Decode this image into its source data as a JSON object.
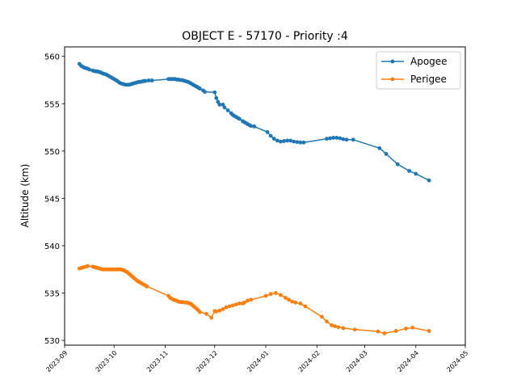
{
  "chart_data": {
    "type": "line",
    "title": "OBJECT E - 57170 - Priority :4",
    "xlabel": "",
    "ylabel": "Altitude (km)",
    "xlim": [
      "2023-09-01",
      "2024-05-01"
    ],
    "ylim": [
      529.5,
      561
    ],
    "x_ticks": [
      "2023-09",
      "2023-10",
      "2023-11",
      "2023-12",
      "2024-01",
      "2024-02",
      "2024-03",
      "2024-04",
      "2024-05"
    ],
    "y_ticks": [
      530,
      535,
      540,
      545,
      550,
      555,
      560
    ],
    "grid": false,
    "legend": "top-right",
    "series": [
      {
        "name": "Apogee",
        "color": "#1f77b4",
        "marker": "circle",
        "points": [
          [
            "2023-09-10",
            559.2
          ],
          [
            "2023-09-11",
            559.0
          ],
          [
            "2023-09-12",
            558.9
          ],
          [
            "2023-09-13",
            558.8
          ],
          [
            "2023-09-14",
            558.75
          ],
          [
            "2023-09-15",
            558.7
          ],
          [
            "2023-09-16",
            558.6
          ],
          [
            "2023-09-18",
            558.5
          ],
          [
            "2023-09-19",
            558.45
          ],
          [
            "2023-09-20",
            558.4
          ],
          [
            "2023-09-21",
            558.4
          ],
          [
            "2023-09-22",
            558.35
          ],
          [
            "2023-09-23",
            558.3
          ],
          [
            "2023-09-24",
            558.2
          ],
          [
            "2023-09-25",
            558.15
          ],
          [
            "2023-09-26",
            558.1
          ],
          [
            "2023-09-27",
            558.0
          ],
          [
            "2023-09-28",
            557.9
          ],
          [
            "2023-09-29",
            557.8
          ],
          [
            "2023-09-30",
            557.7
          ],
          [
            "2023-10-01",
            557.6
          ],
          [
            "2023-10-02",
            557.5
          ],
          [
            "2023-10-03",
            557.4
          ],
          [
            "2023-10-04",
            557.25
          ],
          [
            "2023-10-05",
            557.15
          ],
          [
            "2023-10-06",
            557.1
          ],
          [
            "2023-10-07",
            557.05
          ],
          [
            "2023-10-08",
            557.0
          ],
          [
            "2023-10-09",
            557.0
          ],
          [
            "2023-10-10",
            557.0
          ],
          [
            "2023-10-11",
            557.05
          ],
          [
            "2023-10-12",
            557.1
          ],
          [
            "2023-10-13",
            557.15
          ],
          [
            "2023-10-14",
            557.2
          ],
          [
            "2023-10-15",
            557.25
          ],
          [
            "2023-10-16",
            557.3
          ],
          [
            "2023-10-17",
            557.3
          ],
          [
            "2023-10-18",
            557.35
          ],
          [
            "2023-10-19",
            557.4
          ],
          [
            "2023-10-20",
            557.4
          ],
          [
            "2023-10-22",
            557.45
          ],
          [
            "2023-10-24",
            557.45
          ],
          [
            "2023-11-03",
            557.6
          ],
          [
            "2023-11-04",
            557.6
          ],
          [
            "2023-11-05",
            557.6
          ],
          [
            "2023-11-06",
            557.6
          ],
          [
            "2023-11-07",
            557.6
          ],
          [
            "2023-11-08",
            557.55
          ],
          [
            "2023-11-09",
            557.55
          ],
          [
            "2023-11-10",
            557.5
          ],
          [
            "2023-11-11",
            557.5
          ],
          [
            "2023-11-12",
            557.45
          ],
          [
            "2023-11-13",
            557.4
          ],
          [
            "2023-11-14",
            557.35
          ],
          [
            "2023-11-15",
            557.3
          ],
          [
            "2023-11-16",
            557.2
          ],
          [
            "2023-11-17",
            557.1
          ],
          [
            "2023-11-18",
            557.0
          ],
          [
            "2023-11-19",
            556.9
          ],
          [
            "2023-11-20",
            556.8
          ],
          [
            "2023-11-21",
            556.7
          ],
          [
            "2023-11-22",
            556.6
          ],
          [
            "2023-11-24",
            556.4
          ],
          [
            "2023-11-25",
            556.25
          ],
          [
            "2023-12-01",
            556.2
          ],
          [
            "2023-12-02",
            555.6
          ],
          [
            "2023-12-03",
            555.2
          ],
          [
            "2023-12-04",
            554.9
          ],
          [
            "2023-12-06",
            554.9
          ],
          [
            "2023-12-07",
            554.6
          ],
          [
            "2023-12-09",
            554.3
          ],
          [
            "2023-12-11",
            554.0
          ],
          [
            "2023-12-12",
            553.8
          ],
          [
            "2023-12-13",
            553.7
          ],
          [
            "2023-12-14",
            553.6
          ],
          [
            "2023-12-15",
            553.5
          ],
          [
            "2023-12-16",
            553.4
          ],
          [
            "2023-12-18",
            553.15
          ],
          [
            "2023-12-19",
            553.05
          ],
          [
            "2023-12-20",
            552.95
          ],
          [
            "2023-12-21",
            552.85
          ],
          [
            "2023-12-22",
            552.75
          ],
          [
            "2023-12-23",
            552.65
          ],
          [
            "2023-12-25",
            552.6
          ],
          [
            "2024-01-02",
            552.0
          ],
          [
            "2024-01-04",
            551.6
          ],
          [
            "2024-01-06",
            551.3
          ],
          [
            "2024-01-08",
            551.1
          ],
          [
            "2024-01-10",
            551.0
          ],
          [
            "2024-01-12",
            551.05
          ],
          [
            "2024-01-14",
            551.1
          ],
          [
            "2024-01-16",
            551.1
          ],
          [
            "2024-01-18",
            551.0
          ],
          [
            "2024-01-20",
            550.95
          ],
          [
            "2024-01-22",
            550.9
          ],
          [
            "2024-01-24",
            550.9
          ],
          [
            "2024-02-07",
            551.3
          ],
          [
            "2024-02-09",
            551.35
          ],
          [
            "2024-02-11",
            551.4
          ],
          [
            "2024-02-13",
            551.4
          ],
          [
            "2024-02-15",
            551.35
          ],
          [
            "2024-02-17",
            551.25
          ],
          [
            "2024-02-19",
            551.2
          ],
          [
            "2024-02-23",
            551.2
          ],
          [
            "2024-03-10",
            550.3
          ],
          [
            "2024-03-14",
            549.7
          ],
          [
            "2024-03-21",
            548.6
          ],
          [
            "2024-03-28",
            547.9
          ],
          [
            "2024-04-01",
            547.6
          ],
          [
            "2024-04-09",
            546.9
          ]
        ]
      },
      {
        "name": "Perigee",
        "color": "#ff7f0e",
        "marker": "circle",
        "points": [
          [
            "2023-09-10",
            537.6
          ],
          [
            "2023-09-11",
            537.65
          ],
          [
            "2023-09-12",
            537.7
          ],
          [
            "2023-09-13",
            537.75
          ],
          [
            "2023-09-14",
            537.8
          ],
          [
            "2023-09-15",
            537.85
          ],
          [
            "2023-09-18",
            537.8
          ],
          [
            "2023-09-19",
            537.75
          ],
          [
            "2023-09-20",
            537.7
          ],
          [
            "2023-09-21",
            537.65
          ],
          [
            "2023-09-22",
            537.6
          ],
          [
            "2023-09-23",
            537.55
          ],
          [
            "2023-09-24",
            537.5
          ],
          [
            "2023-09-25",
            537.5
          ],
          [
            "2023-09-26",
            537.5
          ],
          [
            "2023-09-27",
            537.5
          ],
          [
            "2023-09-28",
            537.5
          ],
          [
            "2023-09-29",
            537.5
          ],
          [
            "2023-09-30",
            537.5
          ],
          [
            "2023-10-01",
            537.5
          ],
          [
            "2023-10-02",
            537.5
          ],
          [
            "2023-10-03",
            537.5
          ],
          [
            "2023-10-04",
            537.5
          ],
          [
            "2023-10-05",
            537.5
          ],
          [
            "2023-10-06",
            537.45
          ],
          [
            "2023-10-07",
            537.4
          ],
          [
            "2023-10-08",
            537.3
          ],
          [
            "2023-10-09",
            537.2
          ],
          [
            "2023-10-10",
            537.05
          ],
          [
            "2023-10-11",
            536.9
          ],
          [
            "2023-10-12",
            536.75
          ],
          [
            "2023-10-13",
            536.6
          ],
          [
            "2023-10-14",
            536.45
          ],
          [
            "2023-10-15",
            536.3
          ],
          [
            "2023-10-16",
            536.2
          ],
          [
            "2023-10-17",
            536.1
          ],
          [
            "2023-10-18",
            536.0
          ],
          [
            "2023-10-19",
            535.9
          ],
          [
            "2023-10-20",
            535.8
          ],
          [
            "2023-10-21",
            535.7
          ],
          [
            "2023-11-03",
            534.7
          ],
          [
            "2023-11-04",
            534.5
          ],
          [
            "2023-11-05",
            534.4
          ],
          [
            "2023-11-06",
            534.3
          ],
          [
            "2023-11-07",
            534.25
          ],
          [
            "2023-11-08",
            534.2
          ],
          [
            "2023-11-09",
            534.1
          ],
          [
            "2023-11-10",
            534.05
          ],
          [
            "2023-11-11",
            534.05
          ],
          [
            "2023-11-12",
            534.05
          ],
          [
            "2023-11-13",
            534.0
          ],
          [
            "2023-11-14",
            534.0
          ],
          [
            "2023-11-15",
            533.95
          ],
          [
            "2023-11-16",
            533.9
          ],
          [
            "2023-11-17",
            533.8
          ],
          [
            "2023-11-18",
            533.65
          ],
          [
            "2023-11-19",
            533.5
          ],
          [
            "2023-11-20",
            533.35
          ],
          [
            "2023-11-21",
            533.2
          ],
          [
            "2023-11-22",
            533.0
          ],
          [
            "2023-11-26",
            532.8
          ],
          [
            "2023-11-29",
            532.4
          ],
          [
            "2023-12-01",
            533.1
          ],
          [
            "2023-12-02",
            533.05
          ],
          [
            "2023-12-04",
            533.15
          ],
          [
            "2023-12-06",
            533.3
          ],
          [
            "2023-12-08",
            533.5
          ],
          [
            "2023-12-10",
            533.6
          ],
          [
            "2023-12-12",
            533.7
          ],
          [
            "2023-12-14",
            533.8
          ],
          [
            "2023-12-16",
            533.9
          ],
          [
            "2023-12-18",
            533.9
          ],
          [
            "2023-12-19",
            534.0
          ],
          [
            "2023-12-21",
            534.2
          ],
          [
            "2023-12-23",
            534.3
          ],
          [
            "2024-01-01",
            534.7
          ],
          [
            "2024-01-04",
            534.9
          ],
          [
            "2024-01-07",
            535.0
          ],
          [
            "2024-01-10",
            534.8
          ],
          [
            "2024-01-13",
            534.5
          ],
          [
            "2024-01-15",
            534.3
          ],
          [
            "2024-01-17",
            534.1
          ],
          [
            "2024-01-19",
            534.0
          ],
          [
            "2024-01-22",
            533.9
          ],
          [
            "2024-01-25",
            533.6
          ],
          [
            "2024-02-04",
            532.5
          ],
          [
            "2024-02-07",
            532.0
          ],
          [
            "2024-02-10",
            531.6
          ],
          [
            "2024-02-12",
            531.5
          ],
          [
            "2024-02-14",
            531.4
          ],
          [
            "2024-02-17",
            531.3
          ],
          [
            "2024-02-24",
            531.15
          ],
          [
            "2024-03-09",
            530.95
          ],
          [
            "2024-03-13",
            530.75
          ],
          [
            "2024-03-20",
            531.0
          ],
          [
            "2024-03-26",
            531.25
          ],
          [
            "2024-03-30",
            531.35
          ],
          [
            "2024-04-09",
            531.0
          ]
        ]
      }
    ]
  }
}
